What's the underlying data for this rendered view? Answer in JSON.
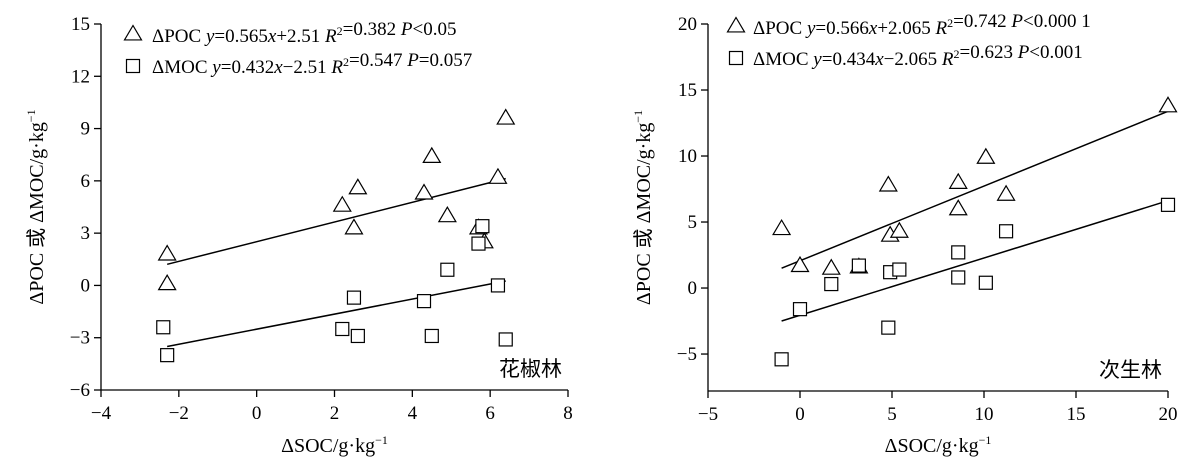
{
  "chart_data": [
    {
      "type": "scatter",
      "xlabel": "ΔSOC/g·kg⁻¹",
      "ylabel": "ΔPOC 或 ΔMOC/g·kg⁻¹",
      "corner_label": "花椒林",
      "xlim": [
        -4,
        8
      ],
      "ylim": [
        -6,
        15
      ],
      "xticks": [
        -4,
        -2,
        0,
        2,
        4,
        6,
        8
      ],
      "yticks": [
        -6,
        -3,
        0,
        3,
        6,
        9,
        12,
        15
      ],
      "xtick_labels": [
        "−4",
        "−2",
        "0",
        "2",
        "4",
        "6",
        "8"
      ],
      "ytick_labels": [
        "−6",
        "−3",
        "0",
        "3",
        "6",
        "9",
        "12",
        "15"
      ],
      "legend_position": "top-left",
      "series": [
        {
          "name": "ΔPOC",
          "marker": "triangle",
          "legend_text": "ΔPOC  y=0.565x+2.51 R²=0.382 P<0.05",
          "fit": {
            "slope": 0.565,
            "intercept": 2.51,
            "x_range": [
              -2.3,
              6.4
            ]
          },
          "points": [
            [
              -2.3,
              1.8
            ],
            [
              -2.3,
              0.1
            ],
            [
              2.2,
              4.6
            ],
            [
              2.5,
              3.3
            ],
            [
              2.6,
              5.6
            ],
            [
              4.3,
              5.3
            ],
            [
              4.5,
              7.4
            ],
            [
              4.9,
              4.0
            ],
            [
              5.7,
              3.3
            ],
            [
              5.85,
              2.5
            ],
            [
              6.2,
              6.2
            ],
            [
              6.4,
              9.6
            ]
          ]
        },
        {
          "name": "ΔMOC",
          "marker": "square",
          "legend_text": "ΔMOC y=0.432x−2.51 R²=0.547 P=0.057",
          "fit": {
            "slope": 0.432,
            "intercept": -2.51,
            "x_range": [
              -2.3,
              6.4
            ]
          },
          "points": [
            [
              -2.4,
              -2.4
            ],
            [
              -2.3,
              -4.0
            ],
            [
              2.2,
              -2.5
            ],
            [
              2.5,
              -0.7
            ],
            [
              2.6,
              -2.9
            ],
            [
              4.3,
              -0.9
            ],
            [
              4.5,
              -2.9
            ],
            [
              4.9,
              0.9
            ],
            [
              5.7,
              2.4
            ],
            [
              5.8,
              3.4
            ],
            [
              6.2,
              0.0
            ],
            [
              6.4,
              -3.1
            ]
          ]
        }
      ]
    },
    {
      "type": "scatter",
      "xlabel": "ΔSOC/g·kg⁻¹",
      "ylabel": "ΔPOC 或 ΔMOC/g·kg⁻¹",
      "corner_label": "次生林",
      "xlim": [
        -5,
        20
      ],
      "ylim": [
        -7.8,
        20
      ],
      "xticks": [
        -5,
        0,
        5,
        10,
        15,
        20
      ],
      "yticks": [
        -5,
        0,
        5,
        10,
        15,
        20
      ],
      "xtick_labels": [
        "−5",
        "0",
        "5",
        "10",
        "15",
        "20"
      ],
      "ytick_labels": [
        "−5",
        "0",
        "5",
        "10",
        "15",
        "20"
      ],
      "legend_position": "top-left",
      "series": [
        {
          "name": "ΔPOC",
          "marker": "triangle",
          "legend_text": "ΔPOC  y=0.566x+2.065 R²=0.742 P<0.000 1",
          "fit": {
            "slope": 0.566,
            "intercept": 2.065,
            "x_range": [
              -1.0,
              20.0
            ]
          },
          "points": [
            [
              -1.0,
              4.5
            ],
            [
              0.0,
              1.7
            ],
            [
              1.7,
              1.5
            ],
            [
              3.2,
              1.6
            ],
            [
              4.8,
              7.8
            ],
            [
              4.9,
              4.0
            ],
            [
              5.4,
              4.3
            ],
            [
              8.6,
              6.0
            ],
            [
              8.6,
              8.0
            ],
            [
              10.1,
              9.9
            ],
            [
              11.2,
              7.1
            ],
            [
              20.0,
              13.8
            ]
          ]
        },
        {
          "name": "ΔMOC",
          "marker": "square",
          "legend_text": "ΔMOC y=0.434x−2.065 R²=0.623 P<0.001",
          "fit": {
            "slope": 0.434,
            "intercept": -2.065,
            "x_range": [
              -1.0,
              20.0
            ]
          },
          "points": [
            [
              -1.0,
              -5.4
            ],
            [
              0.0,
              -1.6
            ],
            [
              1.7,
              0.3
            ],
            [
              3.2,
              1.7
            ],
            [
              4.8,
              -3.0
            ],
            [
              4.9,
              1.2
            ],
            [
              5.4,
              1.4
            ],
            [
              8.6,
              2.7
            ],
            [
              8.6,
              0.8
            ],
            [
              10.1,
              0.4
            ],
            [
              11.2,
              4.3
            ],
            [
              20.0,
              6.3
            ]
          ]
        }
      ]
    }
  ]
}
